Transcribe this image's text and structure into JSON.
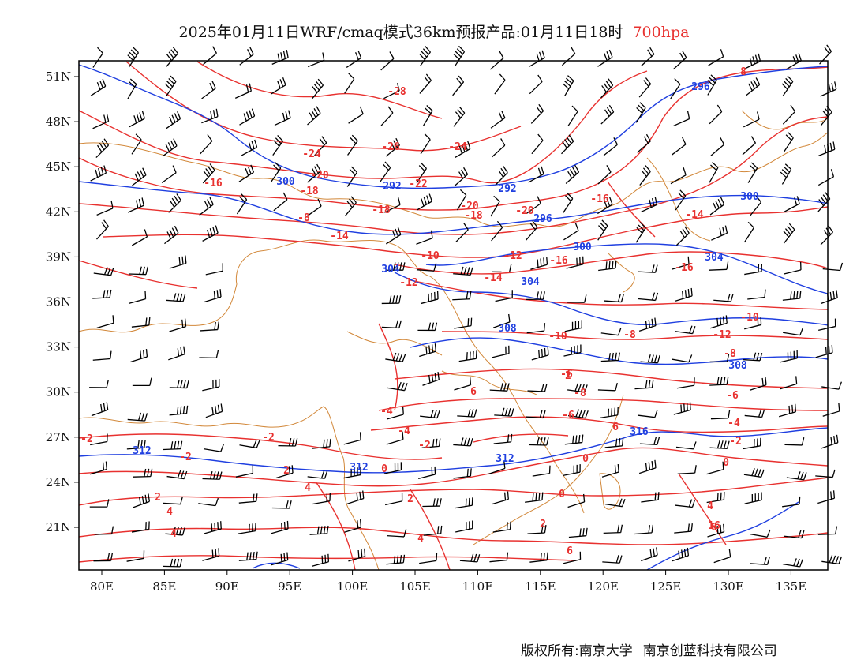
{
  "title": {
    "main": "2025年01月11日WRF/cmaq模式36km预报产品:01月11日18时",
    "level": "700hpa",
    "level_color": "#e8312f"
  },
  "map": {
    "lon_ticks": [
      "80E",
      "85E",
      "90E",
      "95E",
      "100E",
      "105E",
      "110E",
      "115E",
      "120E",
      "125E",
      "130E",
      "135E"
    ],
    "lat_ticks": [
      "51N",
      "48N",
      "45N",
      "42N",
      "39N",
      "36N",
      "33N",
      "30N",
      "27N",
      "24N",
      "21N"
    ],
    "colors": {
      "temperature": "#e8312f",
      "height": "#1f3fe0",
      "border": "#d2883a",
      "wind": "#000000"
    },
    "temperature_labels": [
      "-28",
      "-26",
      "-24",
      "-24",
      "-16",
      "-20",
      "-22",
      "-18",
      "-20",
      "-18",
      "-20",
      "-18",
      "-16",
      "-16",
      "-14",
      "-12",
      "-14",
      "-16",
      "-10",
      "-14",
      "-12",
      "-8",
      "-10",
      "-12",
      "-10",
      "-8",
      "-8",
      "-6",
      "-6",
      "-6",
      "-4",
      "-4",
      "-4",
      "-2",
      "-2",
      "-2",
      "-2",
      "-2",
      "0",
      "0",
      "0",
      "0",
      "2",
      "2",
      "2",
      "2",
      "4",
      "4",
      "4",
      "4",
      "4",
      "6",
      "6",
      "6",
      "6",
      "8",
      "2",
      "-8",
      "16"
    ],
    "height_labels": [
      "296",
      "300",
      "292",
      "292",
      "296",
      "300",
      "300",
      "304",
      "304",
      "304",
      "308",
      "308",
      "312",
      "312",
      "312",
      "316"
    ]
  },
  "footer": {
    "copyright": "版权所有:南京大学",
    "company": "南京创蓝科技有限公司"
  }
}
